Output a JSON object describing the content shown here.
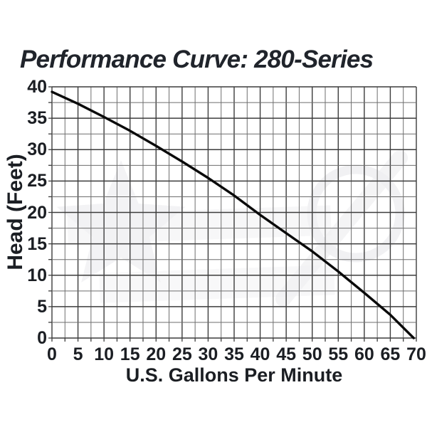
{
  "page": {
    "background": "#ffffff",
    "text_color": "#1b1e23",
    "title_color": "#20242b"
  },
  "title": "Performance Curve: 280-Series",
  "chart_data": {
    "type": "line",
    "title": "Performance Curve: 280-Series",
    "xlabel": "U.S. Gallons Per Minute",
    "ylabel": "Head (Feet)",
    "xlim": [
      0,
      70
    ],
    "ylim": [
      0,
      40
    ],
    "xticks": [
      0,
      5,
      10,
      15,
      20,
      25,
      30,
      35,
      40,
      45,
      50,
      55,
      60,
      65,
      70
    ],
    "yticks": [
      0,
      5,
      10,
      15,
      20,
      25,
      30,
      35,
      40
    ],
    "minor_step": 2.5,
    "grid": "major and minor, both axes, boxed frame",
    "legend": "none",
    "series": [
      {
        "name": "280-Series pump performance curve",
        "x": [
          0,
          5,
          10,
          15,
          20,
          25,
          30,
          35,
          40,
          45,
          50,
          55,
          60,
          65,
          69.5
        ],
        "y": [
          39.2,
          37.3,
          35.2,
          33.0,
          30.6,
          28.1,
          25.5,
          22.7,
          19.6,
          16.7,
          13.8,
          10.6,
          7.2,
          3.7,
          0
        ]
      }
    ],
    "colors": {
      "curve": "#0a0a0a",
      "grid_major": "#3c3c3c",
      "grid_minor": "#6e6e6e",
      "text": "#1b1e23",
      "watermark": "#f0f0f2"
    }
  },
  "watermark": {
    "name": "faint-logo-watermark"
  }
}
